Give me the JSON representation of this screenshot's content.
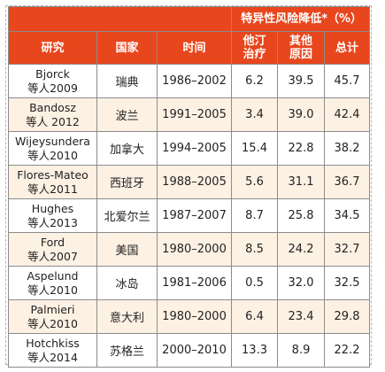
{
  "table": {
    "group_header": "特异性风险降低*（%）",
    "columns": {
      "study": "研究",
      "country": "国家",
      "period": "时间",
      "statin": [
        "他汀",
        "治疗"
      ],
      "other": [
        "其他",
        "原因"
      ],
      "total": "总计"
    },
    "rows": [
      {
        "author": "Bjorck",
        "etal": "等人2009",
        "country": "瑞典",
        "period": "1986–2002",
        "statin": "6.2",
        "other": "39.5",
        "total": "45.7"
      },
      {
        "author": "Bandosz",
        "etal": "等人 2012",
        "country": "波兰",
        "period": "1991–2005",
        "statin": "3.4",
        "other": "39.0",
        "total": "42.4"
      },
      {
        "author": "Wijeysundera",
        "etal": "等人2010",
        "country": "加拿大",
        "period": "1994–2005",
        "statin": "15.4",
        "other": "22.8",
        "total": "38.2"
      },
      {
        "author": "Flores-Mateo",
        "etal": "等人2011",
        "country": "西班牙",
        "period": "1988–2005",
        "statin": "5.6",
        "other": "31.1",
        "total": "36.7"
      },
      {
        "author": "Hughes",
        "etal": "等人2013",
        "country": "北爱尔兰",
        "period": "1987–2007",
        "statin": "8.7",
        "other": "25.8",
        "total": "34.5"
      },
      {
        "author": "Ford",
        "etal": "等人2007",
        "country": "美国",
        "period": "1980–2000",
        "statin": "8.5",
        "other": "24.2",
        "total": "32.7"
      },
      {
        "author": "Aspelund",
        "etal": "等人2010",
        "country": "冰岛",
        "period": "1981–2006",
        "statin": "0.5",
        "other": "32.0",
        "total": "32.5"
      },
      {
        "author": "Palmieri",
        "etal": "等人2010",
        "country": "意大利",
        "period": "1980–2000",
        "statin": "6.4",
        "other": "23.4",
        "total": "29.8"
      },
      {
        "author": "Hotchkiss",
        "etal": "等人2014",
        "country": "苏格兰",
        "period": "2000–2010",
        "statin": "13.3",
        "other": "8.9",
        "total": "22.2"
      }
    ]
  }
}
